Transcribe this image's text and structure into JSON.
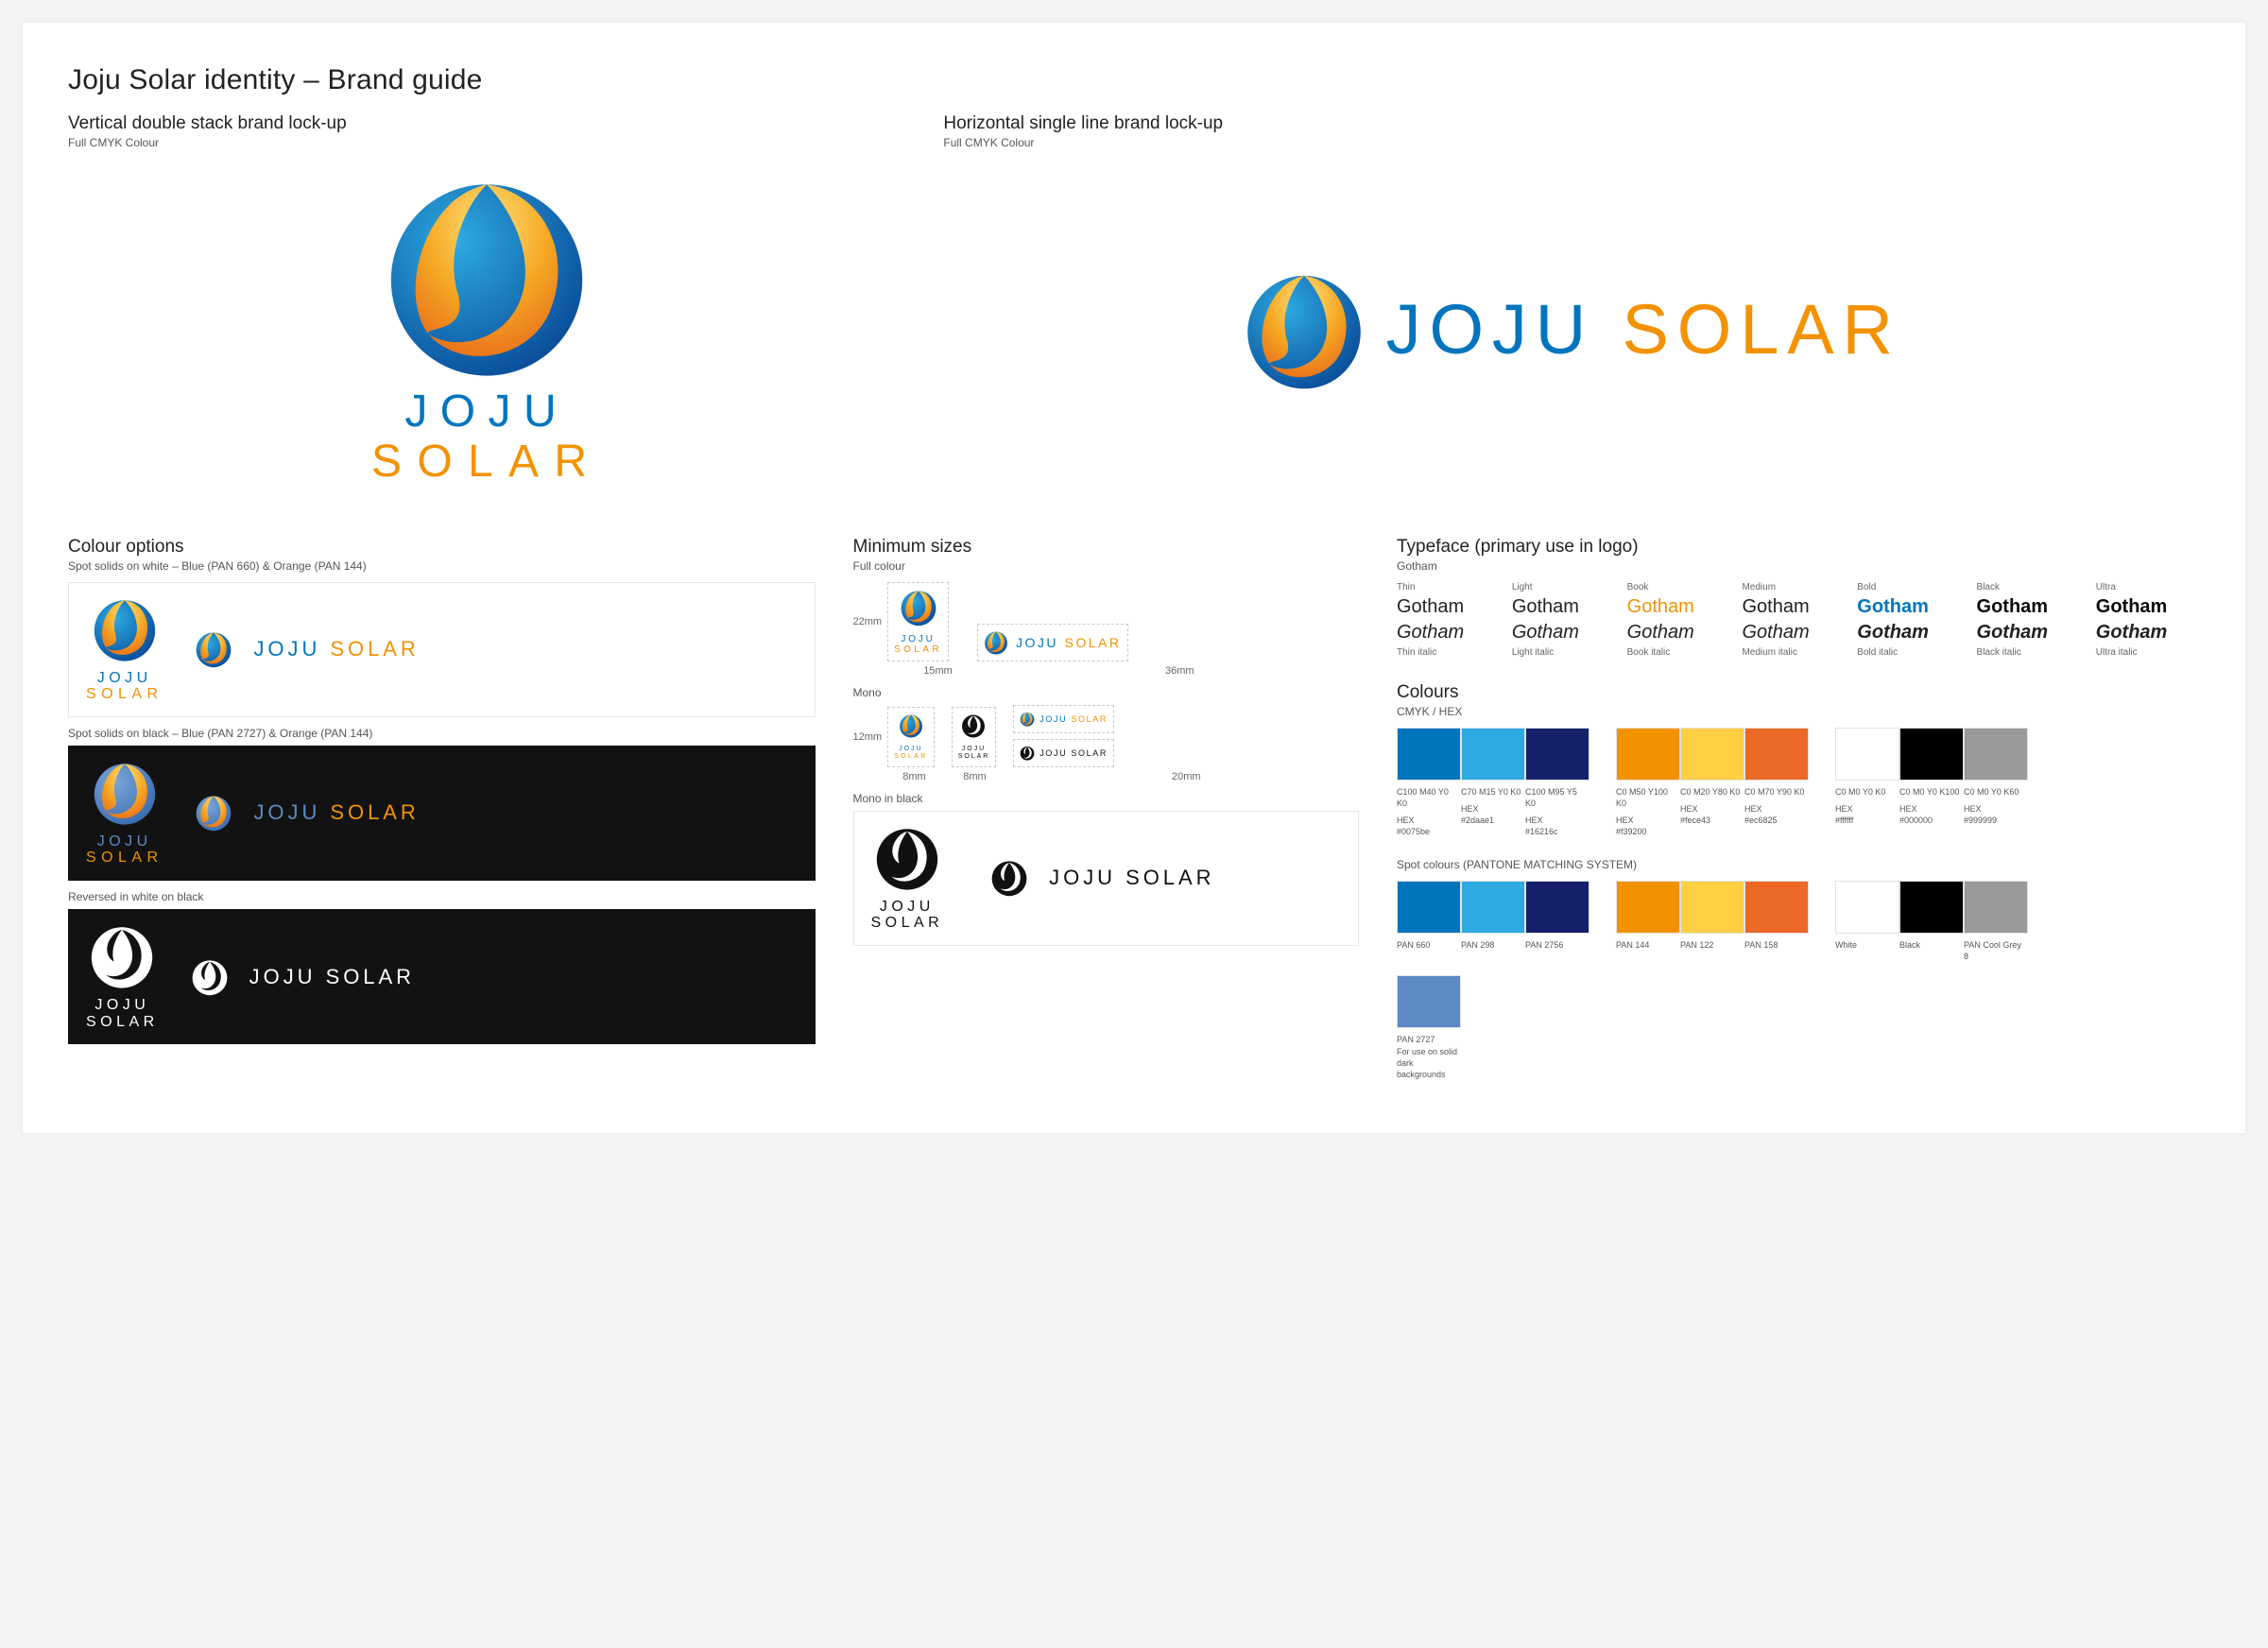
{
  "title": "Joju Solar identity – Brand guide",
  "hero": {
    "left": {
      "h": "Vertical double stack brand lock-up",
      "sub": "Full CMYK Colour"
    },
    "right": {
      "h": "Horizontal single line brand lock-up",
      "sub": "Full CMYK Colour"
    }
  },
  "brand": {
    "joju": "JOJU",
    "solar": "SOLAR",
    "joju_blue": "#0075be",
    "solar_orange": "#f39200"
  },
  "colourOptions": {
    "title": "Colour options",
    "sub": "Spot solids on white – Blue (PAN 660) & Orange (PAN 144)",
    "label_black": "Spot solids on black – Blue (PAN 2727) & Orange (PAN 144)",
    "label_reversed": "Reversed in white on black"
  },
  "minimum": {
    "title": "Minimum sizes",
    "sub": "Full colour",
    "v_h": "22mm",
    "v_w": "15mm",
    "h_w": "36mm",
    "mono_label": "Mono",
    "mono_v_h": "12mm",
    "mono_v_w": "8mm",
    "mono_v2_w": "8mm",
    "mono_h_w": "20mm",
    "mono_black_label": "Mono in black"
  },
  "typeface": {
    "title": "Typeface (primary use in logo)",
    "sub": "Gotham",
    "labels": [
      "Thin",
      "Light",
      "Book",
      "Medium",
      "Bold",
      "Black",
      "Ultra"
    ],
    "samples_colors": [
      "#222",
      "#222",
      "#f39200",
      "#222",
      "#0075be",
      "#0a0a0a",
      "#0a0a0a"
    ],
    "samples_weights": [
      200,
      300,
      400,
      500,
      700,
      800,
      900
    ],
    "word": "Gotham",
    "italic_labels": [
      "Thin italic",
      "Light italic",
      "Book italic",
      "Medium italic",
      "Bold italic",
      "Black italic",
      "Ultra italic"
    ]
  },
  "colours": {
    "title": "Colours",
    "sub": "CMYK / HEX",
    "groups": [
      [
        {
          "hex": "#0075be",
          "cmyk": "C100 M40 Y0 K0",
          "hlabel": "#0075be"
        },
        {
          "hex": "#2daae1",
          "cmyk": "C70 M15 Y0 K0",
          "hlabel": "#2daae1"
        },
        {
          "hex": "#16216c",
          "cmyk": "C100 M95 Y5 K0",
          "hlabel": "#16216c"
        }
      ],
      [
        {
          "hex": "#f39200",
          "cmyk": "C0 M50 Y100 K0",
          "hlabel": "#f39200"
        },
        {
          "hex": "#fece43",
          "cmyk": "C0 M20 Y80 K0",
          "hlabel": "#fece43"
        },
        {
          "hex": "#ec6825",
          "cmyk": "C0 M70 Y90 K0",
          "hlabel": "#ec6825"
        }
      ],
      [
        {
          "hex": "#ffffff",
          "cmyk": "C0 M0 Y0 K0",
          "hlabel": "#ffffff"
        },
        {
          "hex": "#000000",
          "cmyk": "C0 M0 Y0 K100",
          "hlabel": "#000000"
        },
        {
          "hex": "#999999",
          "cmyk": "C0 M0 Y0 K60",
          "hlabel": "#999999"
        }
      ]
    ],
    "hex_label": "HEX",
    "spot_title": "Spot colours (PANTONE MATCHING SYSTEM)",
    "spot_groups": [
      [
        {
          "hex": "#0075be",
          "name": "PAN 660"
        },
        {
          "hex": "#2daae1",
          "name": "PAN 298"
        },
        {
          "hex": "#16216c",
          "name": "PAN 2756"
        }
      ],
      [
        {
          "hex": "#f39200",
          "name": "PAN 144"
        },
        {
          "hex": "#fece43",
          "name": "PAN 122"
        },
        {
          "hex": "#ec6825",
          "name": "PAN 158"
        }
      ],
      [
        {
          "hex": "#ffffff",
          "name": "White"
        },
        {
          "hex": "#000000",
          "name": "Black"
        },
        {
          "hex": "#999999",
          "name": "PAN Cool Grey 8"
        }
      ]
    ],
    "extra_spot": {
      "hex": "#5b8ac5",
      "name": "PAN 2727",
      "note": "For use on solid dark backgrounds"
    }
  }
}
